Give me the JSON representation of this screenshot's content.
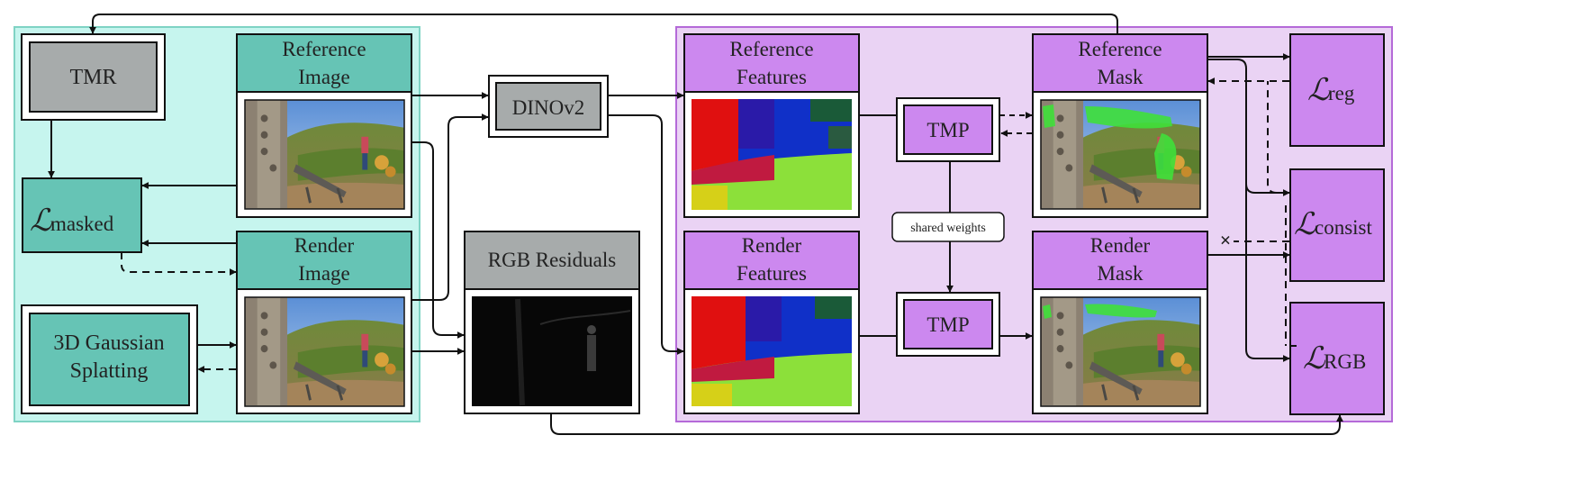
{
  "colors": {
    "left_panel_bg": "#c6f5ee",
    "left_panel_border": "#7fd3c4",
    "right_panel_bg": "#ead3f4",
    "right_panel_border": "#b46ad8",
    "teal_header": "#66c4b5",
    "purple_header": "#cc88ef",
    "gray_box": "#a7abab",
    "feature_red": "#e01010",
    "feature_blue": "#1030c8",
    "feature_green": "#8ce03a",
    "mask_green": "#3fe03a"
  },
  "nodes": {
    "tmr": "TMR",
    "l_masked_symbol": "ℒ",
    "l_masked_sub": "masked",
    "gs_line1": "3D Gaussian",
    "gs_line2": "Splatting",
    "ref_image_line1": "Reference",
    "ref_image_line2": "Image",
    "render_image_line1": "Render",
    "render_image_line2": "Image",
    "dinov2": "DINOv2",
    "rgb_residuals": "RGB Residuals",
    "ref_features_line1": "Reference",
    "ref_features_line2": "Features",
    "render_features_line1": "Render",
    "render_features_line2": "Features",
    "tmp_top": "TMP",
    "tmp_bottom": "TMP",
    "shared_weights": "shared weights",
    "ref_mask_line1": "Reference",
    "ref_mask_line2": "Mask",
    "render_mask_line1": "Render",
    "render_mask_line2": "Mask",
    "l_reg_symbol": "ℒ",
    "l_reg_sub": "reg",
    "l_consist_symbol": "ℒ",
    "l_consist_sub": "consist",
    "l_rgb_symbol": "ℒ",
    "l_rgb_sub": "RGB",
    "stop_grad_mark": "×"
  }
}
